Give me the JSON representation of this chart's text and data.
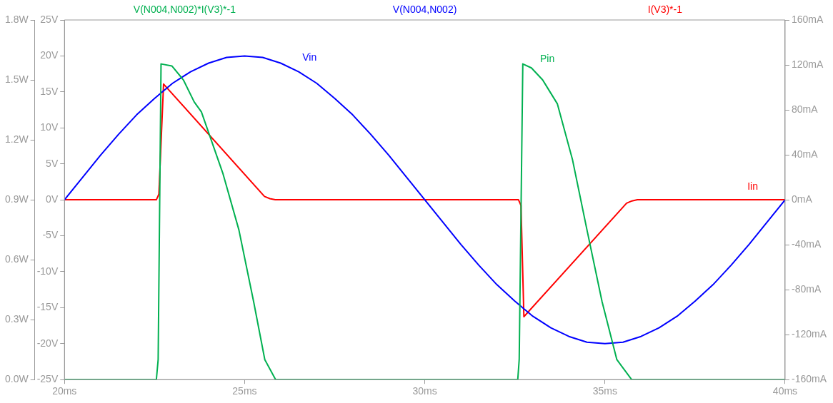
{
  "chart_data": {
    "type": "line",
    "legend": "top",
    "grid": false,
    "marker": "none",
    "line_style": "solid",
    "xlim": [
      20,
      40
    ],
    "xticks": [
      {
        "value": 20,
        "label": "20ms"
      },
      {
        "value": 25,
        "label": "25ms"
      },
      {
        "value": 30,
        "label": "30ms"
      },
      {
        "value": 35,
        "label": "35ms"
      },
      {
        "value": 40,
        "label": "40ms"
      }
    ],
    "ylim": [
      -25,
      25
    ],
    "yticks": [
      {
        "value": -25,
        "label": "-25V"
      },
      {
        "value": -20,
        "label": "-20V"
      },
      {
        "value": -15,
        "label": "-15V"
      },
      {
        "value": -10,
        "label": "-10V"
      },
      {
        "value": -5,
        "label": "-5V"
      },
      {
        "value": 0,
        "label": "0V"
      },
      {
        "value": 5,
        "label": "5V"
      },
      {
        "value": 10,
        "label": "10V"
      },
      {
        "value": 15,
        "label": "15V"
      },
      {
        "value": 20,
        "label": "20V"
      },
      {
        "value": 25,
        "label": "25V"
      }
    ],
    "y2lim": [
      -160,
      160
    ],
    "y2ticks": [
      {
        "value": -160,
        "label": "-160mA"
      },
      {
        "value": -120,
        "label": "-120mA"
      },
      {
        "value": -80,
        "label": "-80mA"
      },
      {
        "value": -40,
        "label": "-40mA"
      },
      {
        "value": 0,
        "label": "0mA"
      },
      {
        "value": 40,
        "label": "40mA"
      },
      {
        "value": 80,
        "label": "80mA"
      },
      {
        "value": 120,
        "label": "120mA"
      },
      {
        "value": 160,
        "label": "160mA"
      }
    ],
    "y3lim": [
      0,
      1.8
    ],
    "y3ticks": [
      {
        "value": 0,
        "label": "0.0W"
      },
      {
        "value": 0.3,
        "label": "0.3W"
      },
      {
        "value": 0.6,
        "label": "0.6W"
      },
      {
        "value": 0.9,
        "label": "0.9W"
      },
      {
        "value": 1.2,
        "label": "1.2W"
      },
      {
        "value": 1.5,
        "label": "1.5W"
      },
      {
        "value": 1.8,
        "label": "1.8W"
      }
    ],
    "series": [
      {
        "name": "V(N004,N002)*I(V3)*-1",
        "color": "#00b050",
        "axis": "y3",
        "x": [
          20,
          22.55,
          22.6,
          22.68,
          22.98,
          23.3,
          23.6,
          23.8,
          24.4,
          24.84,
          25.25,
          25.56,
          25.86,
          32.58,
          32.62,
          32.72,
          32.96,
          33.27,
          33.68,
          34.1,
          34.5,
          34.92,
          35.33,
          35.74,
          40
        ],
        "values": [
          0,
          0,
          0.1,
          1.58,
          1.57,
          1.5,
          1.39,
          1.34,
          1.03,
          0.75,
          0.39,
          0.1,
          0,
          0,
          0.1,
          1.58,
          1.56,
          1.5,
          1.38,
          1.1,
          0.75,
          0.39,
          0.1,
          0,
          0
        ]
      },
      {
        "name": "V(N004,N002)",
        "color": "#0000ff",
        "x": [
          20,
          20.5,
          21,
          21.5,
          22,
          22.5,
          23,
          23.5,
          24,
          24.5,
          25,
          25.5,
          26,
          26.5,
          27,
          27.5,
          28,
          28.5,
          29,
          29.5,
          30,
          30.5,
          31,
          31.5,
          32,
          32.5,
          33,
          33.5,
          34,
          34.5,
          35,
          35.5,
          36,
          36.5,
          37,
          37.5,
          38,
          38.5,
          39,
          39.5,
          40
        ],
        "values": [
          0,
          3.1,
          6.2,
          9.1,
          11.8,
          14.1,
          16.2,
          17.8,
          19,
          19.8,
          20,
          19.8,
          19,
          17.8,
          16.2,
          14.1,
          11.8,
          9.1,
          6.2,
          3.1,
          0,
          -3.1,
          -6.2,
          -9.1,
          -11.8,
          -14.1,
          -16.2,
          -17.8,
          -19,
          -19.8,
          -20,
          -19.8,
          -19,
          -17.8,
          -16.2,
          -14.1,
          -11.8,
          -9.1,
          -6.2,
          -3.1,
          0
        ]
      },
      {
        "name": "I(V3)*-1",
        "color": "#ff0000",
        "axis": "y2",
        "x": [
          20,
          22.55,
          22.62,
          22.75,
          25.55,
          25.7,
          25.85,
          32.6,
          32.67,
          32.75,
          35.6,
          35.75,
          35.9,
          40
        ],
        "values": [
          0,
          0,
          5,
          103,
          3,
          1,
          0,
          0,
          -5,
          -104,
          -3,
          -1,
          0,
          0
        ]
      }
    ],
    "annotations": [
      "Pin",
      "Vin",
      "Iin"
    ]
  }
}
